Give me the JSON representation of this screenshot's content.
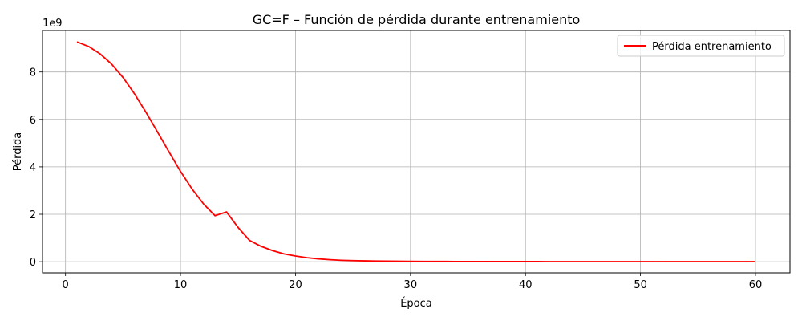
{
  "chart_data": {
    "type": "line",
    "title": "GC=F – Función de pérdida durante entrenamiento",
    "xlabel": "Época",
    "ylabel": "Pérdida",
    "y_offset_text": "1e9",
    "xlim": [
      -2,
      63
    ],
    "ylim": [
      -0.47,
      9.75
    ],
    "x_ticks": [
      0,
      10,
      20,
      30,
      40,
      50,
      60
    ],
    "y_ticks": [
      0,
      2,
      4,
      6,
      8
    ],
    "grid": true,
    "legend_position": "top-right",
    "series": [
      {
        "name": "Pérdida entrenamiento",
        "color": "#ff0000",
        "x": [
          1,
          2,
          3,
          4,
          5,
          6,
          7,
          8,
          9,
          10,
          11,
          12,
          13,
          14,
          15,
          16,
          17,
          18,
          19,
          20,
          21,
          22,
          23,
          24,
          25,
          26,
          27,
          28,
          29,
          30,
          31,
          32,
          33,
          34,
          35,
          36,
          37,
          38,
          39,
          40,
          41,
          42,
          43,
          44,
          45,
          46,
          47,
          48,
          49,
          50,
          51,
          52,
          53,
          54,
          55,
          56,
          57,
          58,
          59,
          60
        ],
        "values": [
          9.27,
          9.08,
          8.77,
          8.34,
          7.77,
          7.08,
          6.3,
          5.47,
          4.63,
          3.81,
          3.07,
          2.44,
          1.94,
          2.1,
          1.45,
          0.9,
          0.65,
          0.47,
          0.33,
          0.24,
          0.17,
          0.12,
          0.085,
          0.06,
          0.045,
          0.035,
          0.028,
          0.022,
          0.018,
          0.015,
          0.013,
          0.011,
          0.01,
          0.009,
          0.008,
          0.007,
          0.006,
          0.006,
          0.005,
          0.005,
          0.005,
          0.004,
          0.004,
          0.004,
          0.004,
          0.003,
          0.003,
          0.003,
          0.003,
          0.003,
          0.003,
          0.002,
          0.002,
          0.002,
          0.002,
          0.002,
          0.002,
          0.002,
          0.002,
          0.002
        ]
      }
    ]
  }
}
